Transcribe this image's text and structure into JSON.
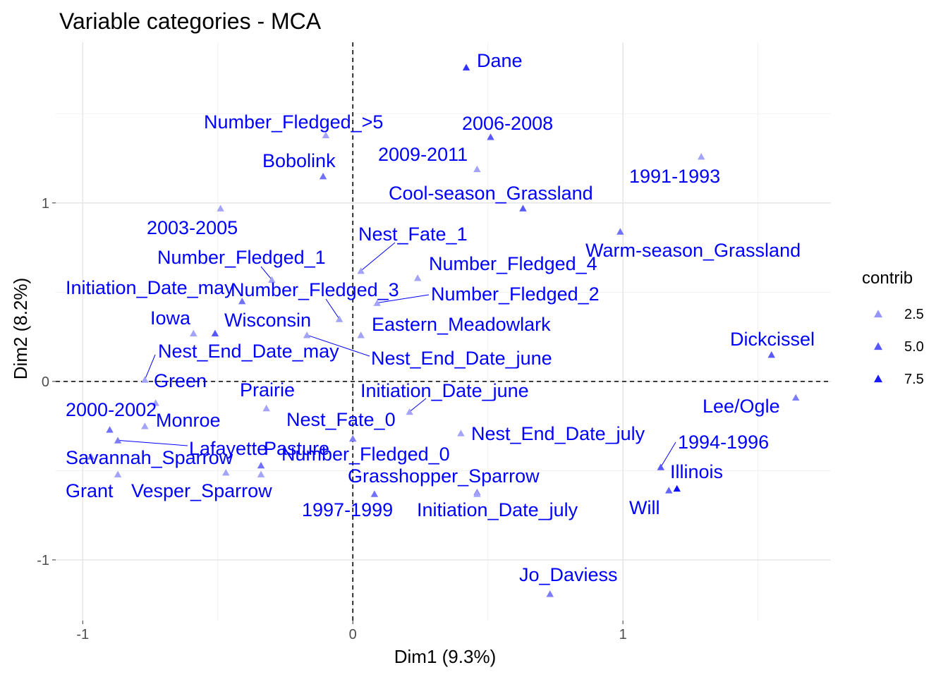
{
  "chart_data": {
    "type": "scatter",
    "title": "Variable categories - MCA",
    "xlabel": "Dim1 (9.3%)",
    "ylabel": "Dim2 (8.2%)",
    "xlim": [
      -1.1,
      1.77
    ],
    "ylim": [
      -1.34,
      1.9
    ],
    "xticks": [
      -1,
      0,
      1
    ],
    "xtick_labels": [
      "-1",
      "0",
      "1"
    ],
    "yticks": [
      -1,
      0,
      1
    ],
    "ytick_labels": [
      "-1",
      "0",
      "1"
    ],
    "grid": true,
    "reference_lines": {
      "x": 0,
      "y": 0,
      "style": "dashed"
    },
    "label_color": "#0000ff",
    "contrib_color_low": "#c8c8f7",
    "contrib_color_high": "#0000ff",
    "contrib_range": [
      0.5,
      8.5
    ],
    "legend": {
      "title": "contrib",
      "position": "right",
      "entries": [
        {
          "label": "2.5",
          "value": 2.5
        },
        {
          "label": "5.0",
          "value": 5.0
        },
        {
          "label": "7.5",
          "value": 7.5
        }
      ]
    },
    "points": [
      {
        "name": "Dane",
        "x": 0.42,
        "y": 1.76,
        "contrib": 6.5
      },
      {
        "name": "Number_Fledged_>5",
        "x": -0.1,
        "y": 1.38,
        "contrib": 2.0
      },
      {
        "name": "2006-2008",
        "x": 0.51,
        "y": 1.37,
        "contrib": 5.0
      },
      {
        "name": "Bobolink",
        "x": -0.11,
        "y": 1.15,
        "contrib": 4.0
      },
      {
        "name": "2009-2011",
        "x": 0.46,
        "y": 1.19,
        "contrib": 2.0
      },
      {
        "name": "1991-1993",
        "x": 1.29,
        "y": 1.26,
        "contrib": 2.0
      },
      {
        "name": "Cool-season_Grassland",
        "x": 0.63,
        "y": 0.97,
        "contrib": 5.0
      },
      {
        "name": "2003-2005",
        "x": -0.49,
        "y": 0.97,
        "contrib": 2.0
      },
      {
        "name": "Warm-season_Grassland",
        "x": 0.99,
        "y": 0.84,
        "contrib": 4.0
      },
      {
        "name": "Nest_Fate_1",
        "x": 0.03,
        "y": 0.62,
        "contrib": 2.0
      },
      {
        "name": "Number_Fledged_1",
        "x": -0.3,
        "y": 0.57,
        "contrib": 2.0
      },
      {
        "name": "Number_Fledged_4",
        "x": 0.24,
        "y": 0.58,
        "contrib": 2.0
      },
      {
        "name": "Initiation_Date_may",
        "x": -0.41,
        "y": 0.45,
        "contrib": 4.0
      },
      {
        "name": "Number_Fledged_3",
        "x": -0.05,
        "y": 0.35,
        "contrib": 2.0
      },
      {
        "name": "Number_Fledged_2",
        "x": 0.09,
        "y": 0.44,
        "contrib": 2.0
      },
      {
        "name": "Iowa",
        "x": -0.59,
        "y": 0.27,
        "contrib": 2.0
      },
      {
        "name": "Wisconsin",
        "x": -0.51,
        "y": 0.27,
        "contrib": 5.0
      },
      {
        "name": "Eastern_Meadowlark",
        "x": 0.03,
        "y": 0.26,
        "contrib": 2.0
      },
      {
        "name": "Nest_End_Date_june",
        "x": -0.17,
        "y": 0.26,
        "contrib": 2.0
      },
      {
        "name": "Dickcissel",
        "x": 1.55,
        "y": 0.15,
        "contrib": 5.0
      },
      {
        "name": "Nest_End_Date_may",
        "x": -0.77,
        "y": 0.01,
        "contrib": 2.0
      },
      {
        "name": "Green",
        "x": -0.73,
        "y": -0.12,
        "contrib": 2.0
      },
      {
        "name": "Prairie",
        "x": -0.32,
        "y": -0.15,
        "contrib": 2.0
      },
      {
        "name": "Initiation_Date_june",
        "x": 0.21,
        "y": -0.17,
        "contrib": 2.0
      },
      {
        "name": "Lee/Ogle",
        "x": 1.64,
        "y": -0.09,
        "contrib": 3.5
      },
      {
        "name": "2000-2002",
        "x": -0.9,
        "y": -0.27,
        "contrib": 4.0
      },
      {
        "name": "Monroe",
        "x": -0.77,
        "y": -0.25,
        "contrib": 2.0
      },
      {
        "name": "Nest_Fate_0",
        "x": 0.0,
        "y": -0.32,
        "contrib": 3.5
      },
      {
        "name": "Nest_End_Date_july",
        "x": 0.4,
        "y": -0.29,
        "contrib": 2.0
      },
      {
        "name": "Lafayette",
        "x": -0.87,
        "y": -0.33,
        "contrib": 3.5
      },
      {
        "name": "Pasture",
        "x": -0.34,
        "y": -0.47,
        "contrib": 4.0
      },
      {
        "name": "Number_Fledged_0",
        "x": -0.47,
        "y": -0.51,
        "contrib": 2.0
      },
      {
        "name": "Savannah_Sparrow",
        "x": -0.97,
        "y": -0.42,
        "contrib": 3.5
      },
      {
        "name": "Grant",
        "x": -0.87,
        "y": -0.52,
        "contrib": 2.0
      },
      {
        "name": "1994-1996",
        "x": 1.14,
        "y": -0.48,
        "contrib": 5.0
      },
      {
        "name": "Illinois",
        "x": 1.2,
        "y": -0.6,
        "contrib": 8.0
      },
      {
        "name": "Will",
        "x": 1.17,
        "y": -0.61,
        "contrib": 4.5
      },
      {
        "name": "Grasshopper_Sparrow",
        "x": 0.46,
        "y": -0.62,
        "contrib": 3.0
      },
      {
        "name": "1997-1999",
        "x": 0.08,
        "y": -0.63,
        "contrib": 4.0
      },
      {
        "name": "Vesper_Sparrow",
        "x": -0.34,
        "y": -0.52,
        "contrib": 2.0
      },
      {
        "name": "Initiation_Date_july",
        "x": 0.46,
        "y": -0.63,
        "contrib": 2.0
      },
      {
        "name": "Jo_Daviess",
        "x": 0.73,
        "y": -1.19,
        "contrib": 3.5
      }
    ]
  }
}
